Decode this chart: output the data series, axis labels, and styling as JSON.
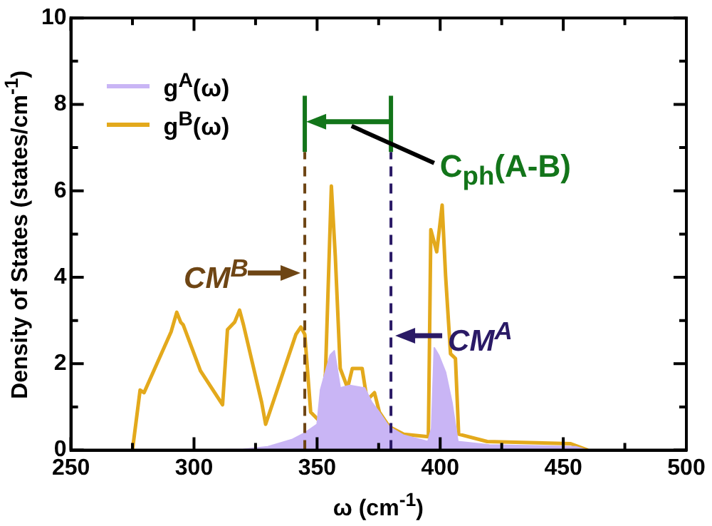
{
  "chart_data": {
    "type": "line",
    "xlabel": "ω (cm$^{-1}$)",
    "ylabel": "Density of States (states/cm$^{-1}$)",
    "xlim": [
      250,
      500
    ],
    "xticks": [
      250,
      {
        "value": 275,
        "label": null
      },
      300,
      {
        "value": 325,
        "label": null
      },
      350,
      {
        "value": 375,
        "label": null
      },
      400,
      {
        "value": 425,
        "label": null
      },
      450,
      {
        "value": 475,
        "label": null
      },
      500
    ],
    "ylim": [
      0,
      10
    ],
    "yticks": [
      0,
      {
        "value": 1,
        "label": null
      },
      2,
      {
        "value": 3,
        "label": null
      },
      4,
      {
        "value": 5,
        "label": null
      },
      6,
      {
        "value": 7,
        "label": null
      },
      8,
      {
        "value": 9,
        "label": null
      },
      10
    ],
    "grid": false,
    "legend": "top left",
    "series": [
      {
        "name": "g$^{A}$(ω)",
        "type": "area",
        "color": "#c9b5f5",
        "x": [
          275,
          300,
          320,
          330,
          340,
          345,
          350,
          351.4,
          355.3,
          357,
          359.4,
          363.3,
          369.3,
          372.3,
          375,
          379.3,
          385,
          395,
          396.5,
          397.6,
          399.4,
          402.2,
          404.8,
          407.2,
          420,
          455,
          460
        ],
        "values": [
          0,
          0,
          0.02,
          0.08,
          0.25,
          0.4,
          0.6,
          1.4,
          2.2,
          2.3,
          1.44,
          1.5,
          1.44,
          1.1,
          0.9,
          0.54,
          0.35,
          0.2,
          0.5,
          2.37,
          2.2,
          1.8,
          1.1,
          0.2,
          0.12,
          0.08,
          0
        ]
      },
      {
        "name": "g$^{B}$(ω)",
        "type": "line",
        "color": "#e3a91c",
        "x": [
          275,
          278.1,
          279.7,
          290.7,
          293,
          294.6,
          295.6,
          302.6,
          311.6,
          313.6,
          316.5,
          318.5,
          320.1,
          327.5,
          329.1,
          341.4,
          343.4,
          345,
          347.4,
          351.4,
          353.4,
          355.8,
          357.4,
          359.4,
          362.4,
          364.3,
          368.3,
          370.3,
          373.3,
          375.3,
          379.3,
          385.2,
          395.2,
          396.2,
          398.6,
          400.8,
          402.2,
          404.2,
          406.2,
          407.5,
          419.1,
          453,
          460
        ],
        "values": [
          0,
          1.39,
          1.33,
          2.74,
          3.19,
          2.96,
          2.9,
          1.84,
          1.05,
          2.79,
          2.96,
          3.24,
          2.9,
          1.1,
          0.6,
          2.68,
          2.85,
          2.68,
          0.88,
          0.65,
          1.78,
          6.11,
          4.48,
          1.89,
          1.44,
          1.89,
          1.89,
          1.16,
          1.33,
          0.88,
          0.54,
          0.37,
          0.31,
          5.1,
          4.59,
          5.67,
          4.03,
          2.23,
          2.12,
          0.37,
          0.2,
          0.15,
          0
        ]
      }
    ],
    "ref_lines": [
      {
        "axis": "x",
        "value": 345,
        "label": "CM$^{B}$",
        "color": "#6e4514",
        "line_style": "dashed"
      },
      {
        "axis": "x",
        "value": 380,
        "label": "CM$^{A}$",
        "color": "#2a1a66",
        "line_style": "dashed"
      }
    ],
    "annotations": [
      "C$_{ph}$(A-B)"
    ]
  }
}
